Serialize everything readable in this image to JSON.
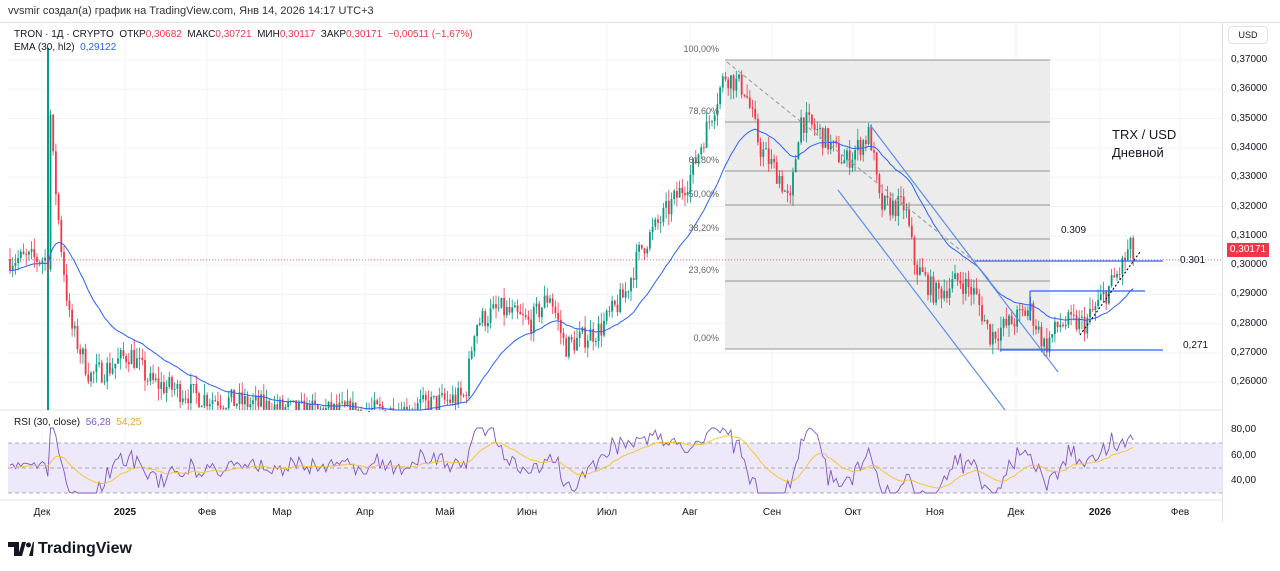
{
  "credit": "vvsmir создал(а) график на TradingView.com, Янв 14, 2026 14:17 UTC+3",
  "legend": {
    "symbol": "TRON · 1Д · CRYPTO",
    "open_label": "ОТКР",
    "open": "0,30682",
    "high_label": "МАКС",
    "high": "0,30721",
    "low_label": "МИН",
    "low": "0,30117",
    "close_label": "ЗАКР",
    "close": "0,30171",
    "change": "−0,00511 (−1,67%)",
    "ema_label": "EMA (30, hl2)",
    "ema_value": "0,29122"
  },
  "rsi": {
    "label": "RSI (30, close)",
    "value1": "56,28",
    "value2": "54,25",
    "ticks": [
      "80,00",
      "60,00",
      "40,00"
    ]
  },
  "currency": "USD",
  "last_price": "0,30171",
  "price_ticks": [
    "0,37000",
    "0,36000",
    "0,35000",
    "0,34000",
    "0,33000",
    "0,32000",
    "0,31000",
    "0,30000",
    "0,29000",
    "0,28000",
    "0,27000",
    "0,26000"
  ],
  "time_ticks": [
    {
      "label": "Дек",
      "bold": false
    },
    {
      "label": "2025",
      "bold": true
    },
    {
      "label": "Фев",
      "bold": false
    },
    {
      "label": "Мар",
      "bold": false
    },
    {
      "label": "Апр",
      "bold": false
    },
    {
      "label": "Май",
      "bold": false
    },
    {
      "label": "Июн",
      "bold": false
    },
    {
      "label": "Июл",
      "bold": false
    },
    {
      "label": "Авг",
      "bold": false
    },
    {
      "label": "Сен",
      "bold": false
    },
    {
      "label": "Окт",
      "bold": false
    },
    {
      "label": "Ноя",
      "bold": false
    },
    {
      "label": "Дек",
      "bold": false
    },
    {
      "label": "2026",
      "bold": true
    },
    {
      "label": "Фев",
      "bold": false
    }
  ],
  "fib_levels": [
    "100,00%",
    "78,60%",
    "61,80%",
    "50,00%",
    "38,20%",
    "23,60%",
    "0,00%"
  ],
  "annotations": {
    "title": "TRX / USD",
    "interval": "Дневной",
    "level_309": "0.309",
    "level_301": "0.301",
    "level_271": "0,271"
  },
  "colors": {
    "up": "#089981",
    "down": "#f23645",
    "ema": "#2962ff",
    "rsi": "#7e57c2",
    "rsi_ma": "#f7c325"
  },
  "brand": "TradingView"
}
